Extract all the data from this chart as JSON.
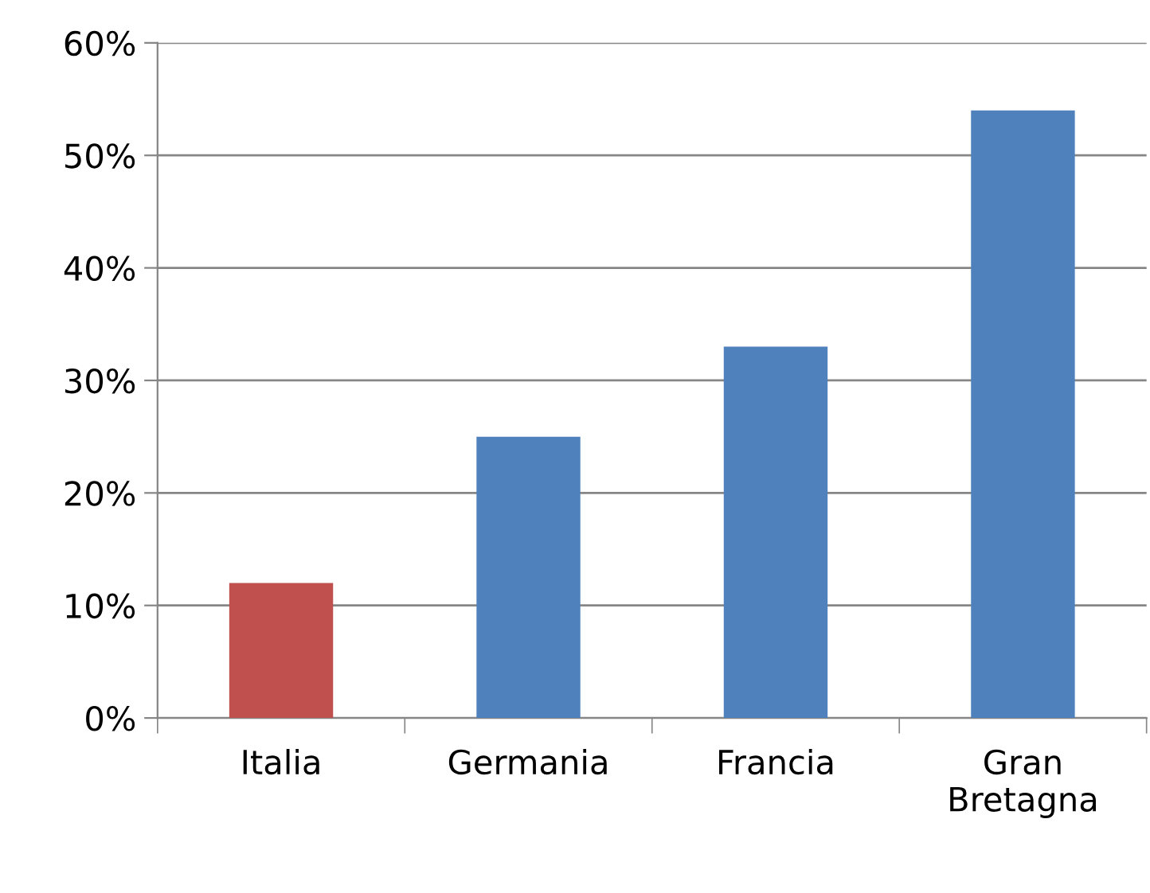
{
  "chart_data": {
    "type": "bar",
    "categories": [
      "Italia",
      "Germania",
      "Francia",
      "Gran\nBretagna"
    ],
    "values": [
      12,
      25,
      33,
      54
    ],
    "colors": [
      "#c0504d",
      "#4f81bd",
      "#4f81bd",
      "#4f81bd"
    ],
    "ylim": [
      0,
      60
    ],
    "yticks": [
      {
        "value": 0,
        "label": "0%"
      },
      {
        "value": 10,
        "label": "10%"
      },
      {
        "value": 20,
        "label": "20%"
      },
      {
        "value": 30,
        "label": "30%"
      },
      {
        "value": 40,
        "label": "40%"
      },
      {
        "value": 50,
        "label": "50%"
      },
      {
        "value": 60,
        "label": "60%"
      }
    ],
    "grid": "y",
    "legend": false
  }
}
